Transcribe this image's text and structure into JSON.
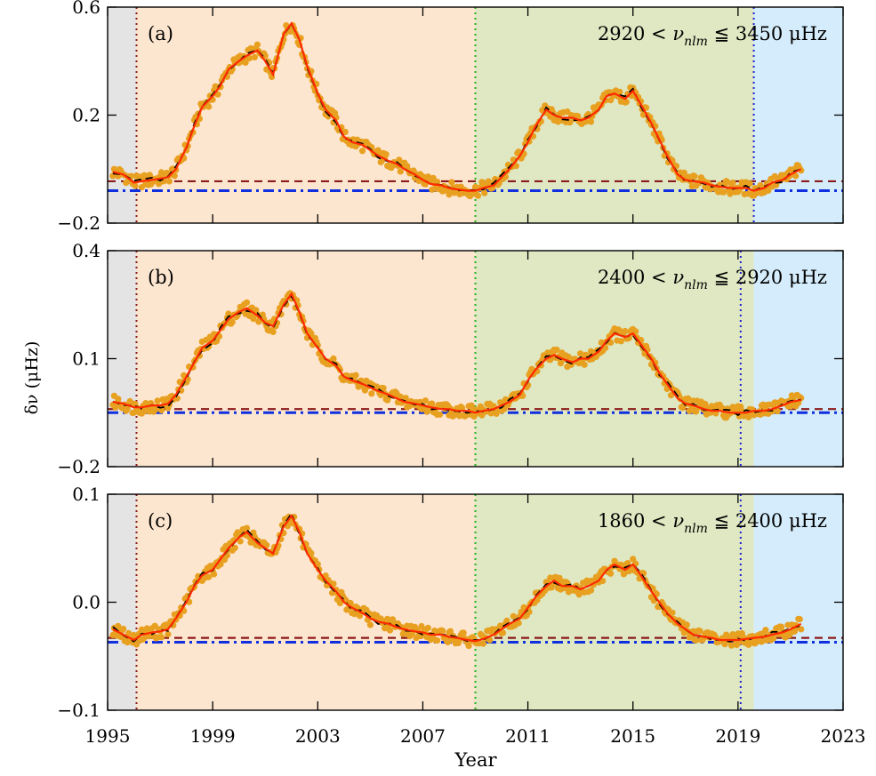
{
  "figure": {
    "ylabel": "δν (μHz)",
    "xlabel": "Year",
    "x_ticks": [
      1995,
      1999,
      2003,
      2007,
      2011,
      2015,
      2019,
      2023
    ],
    "xlim": [
      1995,
      2023
    ]
  },
  "colors": {
    "points": "#e8a020",
    "smooth_red": "#ff2a00",
    "dashed_black": "#000000",
    "maroon_dashed": "#8b1a1a",
    "blue_dashdot": "#1030e0",
    "region_gray": "#e4e4e4",
    "region_orange": "#fde6cf",
    "region_green": "#dfe8c2",
    "region_blue": "#d4ecfb",
    "vline_maroon": "#8b1a1a",
    "vline_green": "#20b020",
    "vline_blue": "#2020d0"
  },
  "chart_data": [
    {
      "type": "scatter",
      "panel_label": "(a)",
      "range_text": {
        "lo": "2920",
        "hi": "3450",
        "unit": "μHz"
      },
      "ylim": [
        -0.2,
        0.6
      ],
      "y_ticks": [
        -0.2,
        0.2,
        0.6
      ],
      "y_tick_labels": [
        "−0.2",
        "0.2",
        "0.6"
      ],
      "regions": {
        "gray": [
          1995,
          1996.1
        ],
        "orange": [
          1996.1,
          2009.0
        ],
        "green": [
          2009.0,
          2019.6
        ],
        "blue": [
          2019.6,
          2023
        ]
      },
      "vlines": {
        "maroon": 1996.1,
        "green": 2009.0,
        "blue": 2019.6
      },
      "hlines": {
        "maroon_dashed": -0.045,
        "blue_dashdot": -0.08
      },
      "series": [
        {
          "x": [
            1995.2,
            1995.6,
            1996.0,
            1996.3,
            1996.7,
            1997.0,
            1997.3,
            1997.6,
            1998.0,
            1998.3,
            1998.6,
            1999.0,
            1999.3,
            1999.6,
            2000.0,
            2000.3,
            2000.7,
            2001.0,
            2001.3,
            2001.7,
            2002.0,
            2002.3,
            2002.6,
            2003.0,
            2003.3,
            2003.7,
            2004.0,
            2004.3,
            2004.7,
            2005.0,
            2005.3,
            2005.7,
            2006.0,
            2006.3,
            2006.7,
            2007.0,
            2007.3,
            2007.7,
            2008.0,
            2008.3,
            2008.7,
            2009.0,
            2009.3,
            2009.7,
            2010.0,
            2010.3,
            2010.7,
            2011.0,
            2011.3,
            2011.7,
            2012.0,
            2012.3,
            2012.7,
            2013.0,
            2013.3,
            2013.7,
            2014.0,
            2014.3,
            2014.7,
            2015.0,
            2015.3,
            2015.7,
            2016.0,
            2016.3,
            2016.7,
            2017.0,
            2017.3,
            2017.7,
            2018.0,
            2018.3,
            2018.7,
            2019.0,
            2019.3,
            2019.6,
            2020.0,
            2020.3,
            2020.7,
            2021.0,
            2021.4
          ],
          "y": [
            -0.01,
            -0.02,
            -0.05,
            -0.045,
            -0.04,
            -0.035,
            -0.03,
            0.0,
            0.08,
            0.16,
            0.23,
            0.27,
            0.31,
            0.37,
            0.4,
            0.42,
            0.44,
            0.4,
            0.35,
            0.5,
            0.54,
            0.48,
            0.38,
            0.28,
            0.22,
            0.18,
            0.12,
            0.1,
            0.09,
            0.07,
            0.05,
            0.03,
            0.02,
            0.0,
            -0.02,
            -0.04,
            -0.055,
            -0.06,
            -0.07,
            -0.075,
            -0.08,
            -0.08,
            -0.07,
            -0.06,
            -0.03,
            0.0,
            0.05,
            0.1,
            0.16,
            0.22,
            0.2,
            0.19,
            0.19,
            0.18,
            0.19,
            0.22,
            0.27,
            0.28,
            0.26,
            0.29,
            0.24,
            0.17,
            0.11,
            0.05,
            -0.02,
            -0.04,
            -0.045,
            -0.05,
            -0.06,
            -0.065,
            -0.07,
            -0.07,
            -0.07,
            -0.08,
            -0.07,
            -0.05,
            -0.04,
            -0.02,
            0.0
          ]
        }
      ]
    },
    {
      "type": "scatter",
      "panel_label": "(b)",
      "range_text": {
        "lo": "2400",
        "hi": "2920",
        "unit": "μHz"
      },
      "ylim": [
        -0.2,
        0.4
      ],
      "y_ticks": [
        -0.2,
        0.1,
        0.4
      ],
      "y_tick_labels": [
        "−0.2",
        "0.1",
        "0.4"
      ],
      "regions": {
        "gray": [
          1995,
          1996.1
        ],
        "orange": [
          1996.1,
          2009.0
        ],
        "green": [
          2009.0,
          2019.6
        ],
        "blue": [
          2019.6,
          2023
        ]
      },
      "vlines": {
        "maroon": 1996.1,
        "green": 2009.0,
        "blue": 2019.1
      },
      "hlines": {
        "maroon_dashed": -0.04,
        "blue_dashdot": -0.05
      },
      "series": [
        {
          "x": [
            1995.2,
            1995.6,
            1996.0,
            1996.3,
            1996.7,
            1997.0,
            1997.3,
            1997.6,
            1998.0,
            1998.3,
            1998.6,
            1999.0,
            1999.3,
            1999.6,
            2000.0,
            2000.3,
            2000.7,
            2001.0,
            2001.3,
            2001.7,
            2002.0,
            2002.3,
            2002.6,
            2003.0,
            2003.3,
            2003.7,
            2004.0,
            2004.3,
            2004.7,
            2005.0,
            2005.3,
            2005.7,
            2006.0,
            2006.3,
            2006.7,
            2007.0,
            2007.3,
            2007.7,
            2008.0,
            2008.3,
            2008.7,
            2009.0,
            2009.3,
            2009.7,
            2010.0,
            2010.3,
            2010.7,
            2011.0,
            2011.3,
            2011.7,
            2012.0,
            2012.3,
            2012.7,
            2013.0,
            2013.3,
            2013.7,
            2014.0,
            2014.3,
            2014.7,
            2015.0,
            2015.3,
            2015.7,
            2016.0,
            2016.3,
            2016.7,
            2017.0,
            2017.3,
            2017.7,
            2018.0,
            2018.3,
            2018.7,
            2019.0,
            2019.3,
            2019.6,
            2020.0,
            2020.3,
            2020.7,
            2021.0,
            2021.4
          ],
          "y": [
            -0.02,
            -0.025,
            -0.035,
            -0.035,
            -0.03,
            -0.03,
            -0.025,
            0.0,
            0.05,
            0.09,
            0.13,
            0.15,
            0.18,
            0.21,
            0.23,
            0.24,
            0.22,
            0.2,
            0.19,
            0.25,
            0.28,
            0.23,
            0.17,
            0.13,
            0.1,
            0.08,
            0.05,
            0.04,
            0.03,
            0.02,
            0.01,
            0.0,
            -0.01,
            -0.02,
            -0.025,
            -0.03,
            -0.035,
            -0.04,
            -0.04,
            -0.045,
            -0.045,
            -0.05,
            -0.045,
            -0.04,
            -0.03,
            -0.02,
            0.0,
            0.04,
            0.07,
            0.1,
            0.11,
            0.1,
            0.09,
            0.1,
            0.1,
            0.12,
            0.15,
            0.17,
            0.16,
            0.17,
            0.14,
            0.1,
            0.06,
            0.03,
            -0.01,
            -0.025,
            -0.03,
            -0.04,
            -0.045,
            -0.045,
            -0.05,
            -0.05,
            -0.05,
            -0.045,
            -0.045,
            -0.04,
            -0.03,
            -0.02,
            -0.015
          ]
        }
      ]
    },
    {
      "type": "scatter",
      "panel_label": "(c)",
      "range_text": {
        "lo": "1860",
        "hi": "2400",
        "unit": "μHz"
      },
      "ylim": [
        -0.1,
        0.1
      ],
      "y_ticks": [
        -0.1,
        0.0,
        0.1
      ],
      "y_tick_labels": [
        "−0.1",
        "0.0",
        "0.1"
      ],
      "regions": {
        "gray": [
          1995,
          1996.1
        ],
        "orange": [
          1996.1,
          2009.0
        ],
        "green": [
          2009.0,
          2019.6
        ],
        "blue": [
          2019.6,
          2023
        ]
      },
      "vlines": {
        "maroon": 1996.1,
        "green": 2009.0,
        "blue": 2019.1
      },
      "hlines": {
        "maroon_dashed": -0.033,
        "blue_dashdot": -0.037
      },
      "series": [
        {
          "x": [
            1995.2,
            1995.6,
            1996.0,
            1996.3,
            1996.7,
            1997.0,
            1997.3,
            1997.6,
            1998.0,
            1998.3,
            1998.6,
            1999.0,
            1999.3,
            1999.6,
            2000.0,
            2000.3,
            2000.7,
            2001.0,
            2001.3,
            2001.7,
            2002.0,
            2002.3,
            2002.6,
            2003.0,
            2003.3,
            2003.7,
            2004.0,
            2004.3,
            2004.7,
            2005.0,
            2005.3,
            2005.7,
            2006.0,
            2006.3,
            2006.7,
            2007.0,
            2007.3,
            2007.7,
            2008.0,
            2008.3,
            2008.7,
            2009.0,
            2009.3,
            2009.7,
            2010.0,
            2010.3,
            2010.7,
            2011.0,
            2011.3,
            2011.7,
            2012.0,
            2012.3,
            2012.7,
            2013.0,
            2013.3,
            2013.7,
            2014.0,
            2014.3,
            2014.7,
            2015.0,
            2015.3,
            2015.7,
            2016.0,
            2016.3,
            2016.7,
            2017.0,
            2017.3,
            2017.7,
            2018.0,
            2018.3,
            2018.7,
            2019.0,
            2019.3,
            2019.6,
            2020.0,
            2020.3,
            2020.7,
            2021.0,
            2021.4
          ],
          "y": [
            -0.025,
            -0.03,
            -0.035,
            -0.03,
            -0.028,
            -0.027,
            -0.025,
            -0.015,
            0.0,
            0.015,
            0.025,
            0.03,
            0.04,
            0.05,
            0.06,
            0.065,
            0.055,
            0.05,
            0.045,
            0.07,
            0.08,
            0.065,
            0.045,
            0.03,
            0.02,
            0.01,
            0.0,
            -0.005,
            -0.01,
            -0.015,
            -0.018,
            -0.02,
            -0.023,
            -0.025,
            -0.027,
            -0.028,
            -0.03,
            -0.03,
            -0.032,
            -0.033,
            -0.035,
            -0.036,
            -0.034,
            -0.03,
            -0.025,
            -0.02,
            -0.015,
            -0.005,
            0.005,
            0.015,
            0.02,
            0.015,
            0.015,
            0.012,
            0.015,
            0.02,
            0.03,
            0.035,
            0.03,
            0.035,
            0.025,
            0.01,
            0.0,
            -0.01,
            -0.02,
            -0.025,
            -0.03,
            -0.032,
            -0.033,
            -0.035,
            -0.035,
            -0.035,
            -0.034,
            -0.033,
            -0.032,
            -0.03,
            -0.028,
            -0.025,
            -0.02
          ]
        }
      ]
    }
  ]
}
